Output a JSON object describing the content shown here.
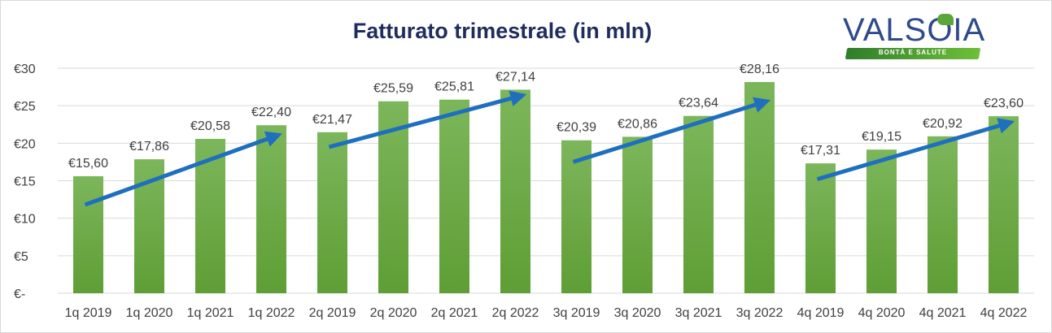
{
  "logo": {
    "brand": "VALSOIA",
    "tagline": "BONTÀ E SALUTE"
  },
  "colors": {
    "bar_top": "#7cb65b",
    "bar_bottom": "#5f9e35",
    "arrow": "#1f6fbf",
    "title": "#1f2d5c",
    "grid": "#d9d9d9"
  },
  "chart_data": {
    "type": "bar",
    "title": "Fatturato trimestrale (in mln)",
    "xlabel": "",
    "ylabel": "",
    "ylim": [
      0,
      30
    ],
    "yticks": [
      0,
      5,
      10,
      15,
      20,
      25,
      30
    ],
    "ytick_labels": [
      "€-",
      "€5",
      "€10",
      "€15",
      "€20",
      "€25",
      "€30"
    ],
    "grid": true,
    "categories": [
      "1q 2019",
      "1q 2020",
      "1q 2021",
      "1q 2022",
      "2q 2019",
      "2q 2020",
      "2q 2021",
      "2q 2022",
      "3q 2019",
      "3q 2020",
      "3q 2021",
      "3q 2022",
      "4q 2019",
      "4q 2020",
      "4q 2021",
      "4q 2022"
    ],
    "values": [
      15.6,
      17.86,
      20.58,
      22.4,
      21.47,
      25.59,
      25.81,
      27.14,
      20.39,
      20.86,
      23.64,
      28.16,
      17.31,
      19.15,
      20.92,
      23.6
    ],
    "value_labels": [
      "€15,60",
      "€17,86",
      "€20,58",
      "€22,40",
      "€21,47",
      "€25,59",
      "€25,81",
      "€27,14",
      "€20,39",
      "€20,86",
      "€23,64",
      "€28,16",
      "€17,31",
      "€19,15",
      "€20,92",
      "€23,60"
    ],
    "trend_arrows": [
      {
        "from": [
          0,
          11.8
        ],
        "to": [
          3,
          21.0
        ]
      },
      {
        "from": [
          4,
          19.5
        ],
        "to": [
          7,
          26.3
        ]
      },
      {
        "from": [
          8,
          17.5
        ],
        "to": [
          11,
          25.5
        ]
      },
      {
        "from": [
          12,
          15.2
        ],
        "to": [
          15,
          22.7
        ]
      }
    ]
  }
}
